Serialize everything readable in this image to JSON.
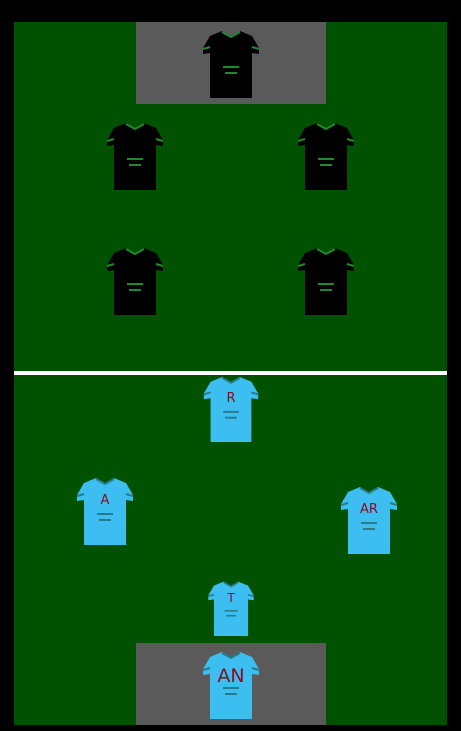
{
  "colors": {
    "background": "#000000",
    "pitch": "#005200",
    "penalty_box": "#5a5a5a",
    "halfway_line": "#ffffff",
    "away_jersey": "#000000",
    "away_trim": "#1e8a2e",
    "home_jersey": "#3cbef0",
    "home_trim": "#2a7a8a",
    "home_label": "#8b0a1e"
  },
  "players": {
    "away_goalkeeper": {
      "label": ""
    },
    "away_left_back": {
      "label": ""
    },
    "away_right_back": {
      "label": ""
    },
    "away_left_forward": {
      "label": ""
    },
    "away_right_forward": {
      "label": ""
    },
    "home_forward": {
      "label": "R"
    },
    "home_left_mid": {
      "label": "A"
    },
    "home_right_mid": {
      "label": "AR"
    },
    "home_defender": {
      "label": "T"
    },
    "home_goalkeeper": {
      "label": "AN"
    }
  }
}
